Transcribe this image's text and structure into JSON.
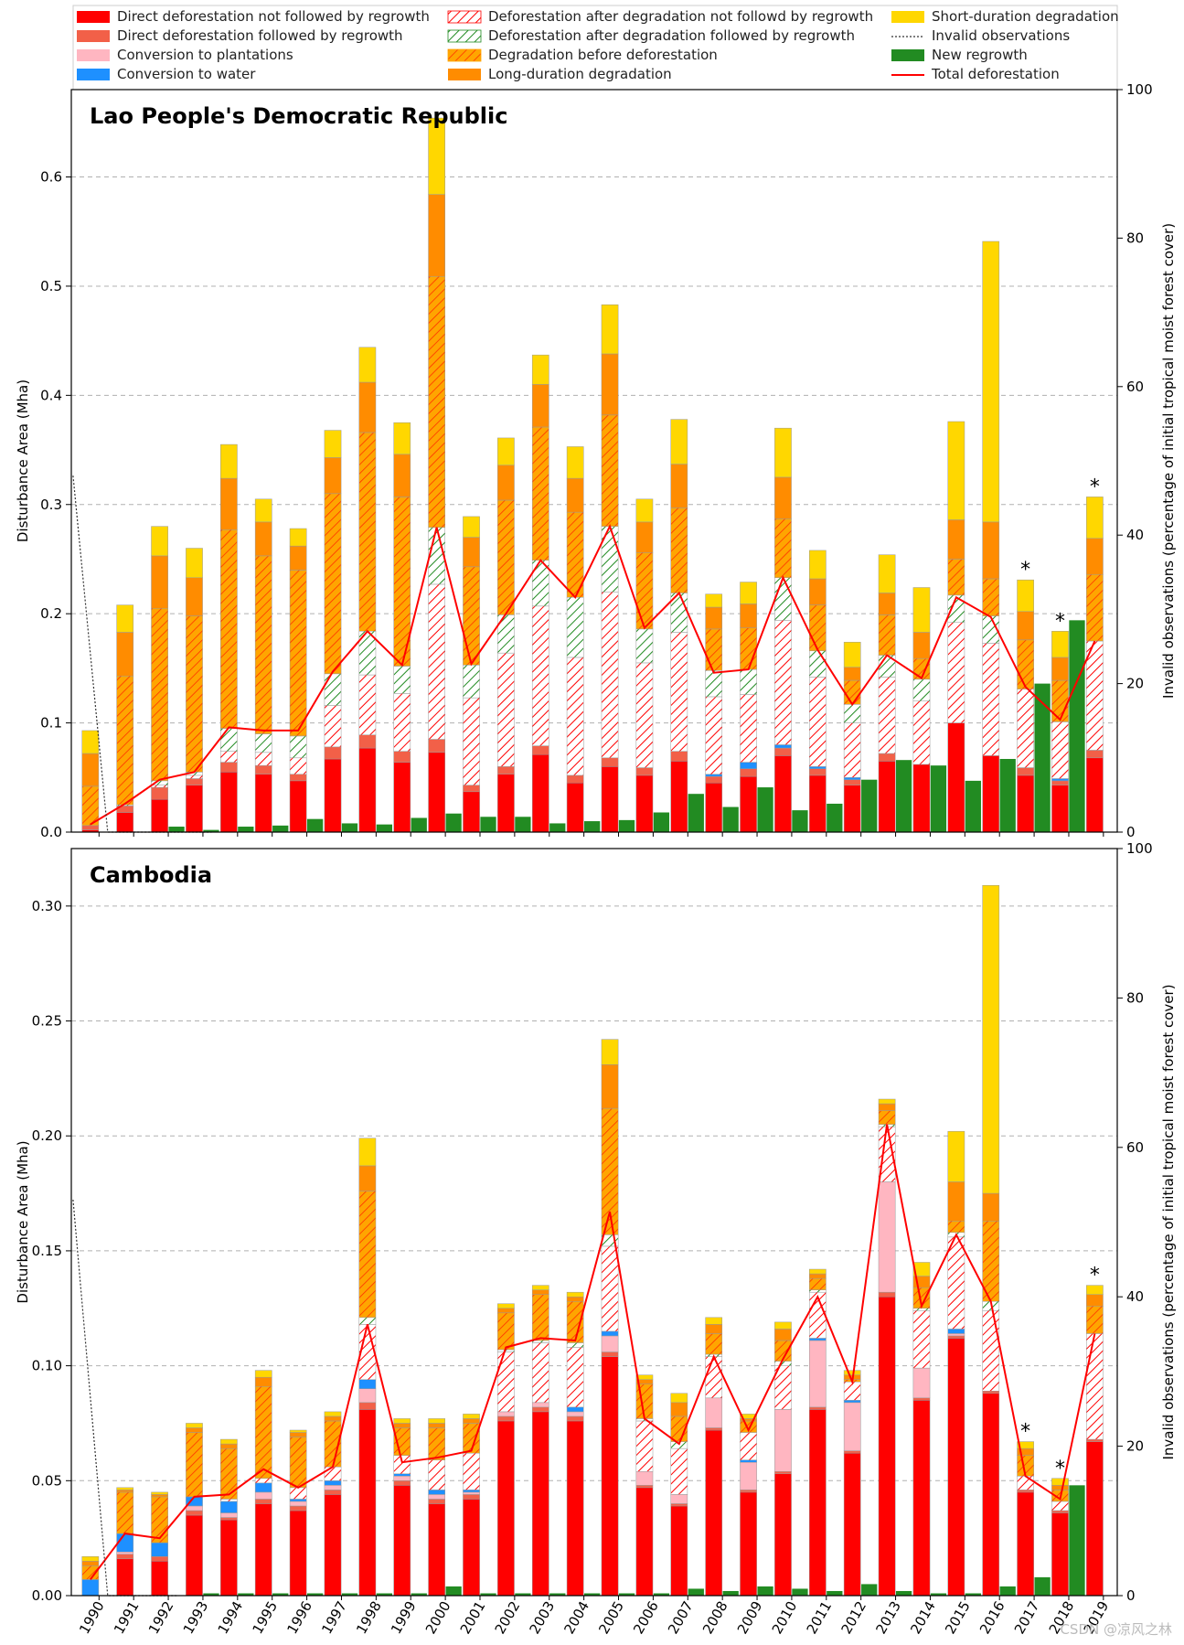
{
  "legend": [
    {
      "label": "Direct deforestation not followed by regrowth",
      "swatch": "solid",
      "color": "#ff0000"
    },
    {
      "label": "Direct deforestation followed by regrowth",
      "swatch": "solid",
      "color": "#f26048"
    },
    {
      "label": "Conversion to plantations",
      "swatch": "solid",
      "color": "#ffb6c1"
    },
    {
      "label": "Conversion to water",
      "swatch": "solid",
      "color": "#1e90ff"
    },
    {
      "label": "Deforestation after degradation not followd by regrowth",
      "swatch": "hatch-red",
      "color": "#ff0000"
    },
    {
      "label": "Deforestation after degradation followed by regrowth",
      "swatch": "hatch-green",
      "color": "#228b22"
    },
    {
      "label": "Degradation before deforestation",
      "swatch": "hatch-orange",
      "color": "#ffa500"
    },
    {
      "label": "Long-duration degradation",
      "swatch": "solid",
      "color": "#ff8c00"
    },
    {
      "label": "Short-duration degradation",
      "swatch": "solid",
      "color": "#ffd700"
    },
    {
      "label": "Invalid observations",
      "swatch": "dotted",
      "color": "#333333"
    },
    {
      "label": "New regrowth",
      "swatch": "solid",
      "color": "#228b22"
    },
    {
      "label": "Total deforestation",
      "swatch": "line",
      "color": "#ff0000"
    }
  ],
  "colors": {
    "direct_no_regrowth": "#ff0000",
    "direct_regrowth": "#f26048",
    "plantation": "#ffb6c1",
    "water": "#1e90ff",
    "after_deg_no_regrowth": "#ff0000",
    "after_deg_regrowth": "#228b22",
    "deg_before": "#ffa500",
    "long_deg": "#ff8c00",
    "short_deg": "#ffd700",
    "regrowth": "#228b22",
    "total_line": "#ff0000"
  },
  "watermark": "CSDN @凉风之林",
  "chart_data": [
    {
      "type": "bar",
      "stacked": true,
      "title": "Lao People's Democratic Republic",
      "ylabel": "Disturbance Area (Mha)",
      "y2label": "Invalid observations (percentage of initial tropical moist forest cover)",
      "ylim": [
        0,
        0.68
      ],
      "y2lim": [
        0,
        100
      ],
      "yticks": [
        "0.0",
        "0.1",
        "0.2",
        "0.3",
        "0.4",
        "0.5",
        "0.6"
      ],
      "y2ticks": [
        "0",
        "20",
        "40",
        "60",
        "80",
        "100"
      ],
      "grid": true,
      "categories": [
        "1990",
        "1991",
        "1992",
        "1993",
        "1994",
        "1995",
        "1996",
        "1997",
        "1998",
        "1999",
        "2000",
        "2001",
        "2002",
        "2003",
        "2004",
        "2005",
        "2006",
        "2007",
        "2008",
        "2009",
        "2010",
        "2011",
        "2012",
        "2013",
        "2014",
        "2015",
        "2016",
        "2017",
        "2018",
        "2019"
      ],
      "series": [
        {
          "name": "Direct deforestation not followed by regrowth",
          "values": [
            0.002,
            0.018,
            0.03,
            0.043,
            0.055,
            0.053,
            0.047,
            0.067,
            0.077,
            0.064,
            0.073,
            0.037,
            0.053,
            0.071,
            0.045,
            0.06,
            0.052,
            0.065,
            0.045,
            0.051,
            0.07,
            0.052,
            0.043,
            0.065,
            0.062,
            0.1,
            0.07,
            0.052,
            0.043,
            0.068
          ]
        },
        {
          "name": "Direct deforestation followed by regrowth",
          "values": [
            0.004,
            0.006,
            0.011,
            0.006,
            0.009,
            0.008,
            0.006,
            0.011,
            0.012,
            0.01,
            0.012,
            0.006,
            0.007,
            0.008,
            0.007,
            0.008,
            0.007,
            0.009,
            0.006,
            0.007,
            0.007,
            0.006,
            0.005,
            0.007,
            0.0,
            0.0,
            0.0,
            0.007,
            0.004,
            0.007
          ]
        },
        {
          "name": "Conversion to plantations",
          "values": [
            0,
            0,
            0,
            0,
            0,
            0,
            0,
            0,
            0,
            0,
            0,
            0,
            0,
            0,
            0,
            0,
            0,
            0,
            0,
            0,
            0,
            0,
            0,
            0,
            0,
            0,
            0,
            0,
            0,
            0
          ]
        },
        {
          "name": "Conversion to water",
          "values": [
            0,
            0,
            0,
            0,
            0,
            0,
            0,
            0,
            0,
            0,
            0,
            0,
            0,
            0,
            0,
            0,
            0,
            0,
            0.002,
            0.006,
            0.003,
            0.002,
            0.002,
            0,
            0,
            0,
            0,
            0,
            0.002,
            0
          ]
        },
        {
          "name": "Deforestation after degradation not followd by regrowth",
          "values": [
            0.0,
            0.0,
            0.002,
            0.003,
            0.01,
            0.012,
            0.015,
            0.038,
            0.055,
            0.053,
            0.142,
            0.08,
            0.104,
            0.128,
            0.108,
            0.152,
            0.096,
            0.109,
            0.071,
            0.062,
            0.114,
            0.082,
            0.05,
            0.07,
            0.058,
            0.092,
            0.103,
            0.072,
            0.052,
            0.1
          ]
        },
        {
          "name": "Deforestation after degradation followed by regrowth",
          "values": [
            0,
            0.001,
            0.004,
            0.003,
            0.021,
            0.017,
            0.02,
            0.029,
            0.04,
            0.025,
            0.052,
            0.03,
            0.035,
            0.042,
            0.055,
            0.06,
            0.031,
            0.036,
            0.024,
            0.023,
            0.039,
            0.024,
            0.017,
            0.02,
            0.02,
            0.025,
            0.025,
            0.0,
            0.0,
            0.0
          ]
        },
        {
          "name": "Degradation before deforestation",
          "values": [
            0.036,
            0.118,
            0.158,
            0.143,
            0.182,
            0.163,
            0.152,
            0.165,
            0.182,
            0.155,
            0.23,
            0.09,
            0.105,
            0.122,
            0.078,
            0.102,
            0.07,
            0.078,
            0.038,
            0.038,
            0.054,
            0.042,
            0.022,
            0.037,
            0.019,
            0.033,
            0.034,
            0.045,
            0.038,
            0.061
          ]
        },
        {
          "name": "Long-duration degradation",
          "values": [
            0.03,
            0.04,
            0.048,
            0.035,
            0.047,
            0.031,
            0.022,
            0.033,
            0.046,
            0.039,
            0.075,
            0.027,
            0.032,
            0.039,
            0.031,
            0.056,
            0.028,
            0.04,
            0.02,
            0.022,
            0.038,
            0.024,
            0.012,
            0.02,
            0.024,
            0.036,
            0.052,
            0.026,
            0.021,
            0.033
          ]
        },
        {
          "name": "Short-duration degradation",
          "values": [
            0.021,
            0.025,
            0.027,
            0.027,
            0.031,
            0.021,
            0.016,
            0.025,
            0.032,
            0.029,
            0.07,
            0.019,
            0.025,
            0.027,
            0.029,
            0.045,
            0.021,
            0.041,
            0.012,
            0.02,
            0.045,
            0.026,
            0.023,
            0.035,
            0.041,
            0.09,
            0.257,
            0.029,
            0.024,
            0.038
          ]
        }
      ],
      "new_regrowth": [
        null,
        0.0,
        0.005,
        0.002,
        0.005,
        0.006,
        0.012,
        0.008,
        0.007,
        0.013,
        0.017,
        0.014,
        0.014,
        0.008,
        0.01,
        0.011,
        0.018,
        0.035,
        0.023,
        0.041,
        0.02,
        0.026,
        0.048,
        0.066,
        0.061,
        0.047,
        0.067,
        0.136,
        0.194,
        null
      ],
      "total_deforestation": [
        0.007,
        0.026,
        0.048,
        0.055,
        0.096,
        0.093,
        0.093,
        0.147,
        0.184,
        0.153,
        0.279,
        0.154,
        0.2,
        0.249,
        0.215,
        0.28,
        0.187,
        0.219,
        0.146,
        0.149,
        0.233,
        0.167,
        0.117,
        0.162,
        0.141,
        0.215,
        0.197,
        0.133,
        0.103,
        0.175
      ],
      "invalid_observations": [
        48,
        0,
        0,
        0,
        0,
        null,
        null,
        null,
        null,
        null,
        null,
        null,
        null,
        null,
        null,
        null,
        null,
        null,
        null,
        null,
        null,
        null,
        null,
        null,
        null,
        null,
        null,
        null,
        null,
        null
      ],
      "asterisk_years": [
        "2017",
        "2018",
        "2019"
      ],
      "asterisk_label": "*"
    },
    {
      "type": "bar",
      "stacked": true,
      "title": "Cambodia",
      "ylabel": "Disturbance Area (Mha)",
      "y2label": "Invalid observations (percentage of initial tropical moist forest cover)",
      "ylim": [
        0,
        0.325
      ],
      "y2lim": [
        0,
        100
      ],
      "yticks": [
        "0.00",
        "0.05",
        "0.10",
        "0.15",
        "0.20",
        "0.25",
        "0.30"
      ],
      "y2ticks": [
        "0",
        "20",
        "40",
        "60",
        "80",
        "100"
      ],
      "grid": true,
      "categories": [
        "1990",
        "1991",
        "1992",
        "1993",
        "1994",
        "1995",
        "1996",
        "1997",
        "1998",
        "1999",
        "2000",
        "2001",
        "2002",
        "2003",
        "2004",
        "2005",
        "2006",
        "2007",
        "2008",
        "2009",
        "2010",
        "2011",
        "2012",
        "2013",
        "2014",
        "2015",
        "2016",
        "2017",
        "2018",
        "2019"
      ],
      "series": [
        {
          "name": "Direct deforestation not followed by regrowth",
          "values": [
            0.0,
            0.016,
            0.015,
            0.035,
            0.033,
            0.04,
            0.037,
            0.044,
            0.081,
            0.048,
            0.04,
            0.042,
            0.076,
            0.08,
            0.076,
            0.104,
            0.047,
            0.039,
            0.072,
            0.045,
            0.053,
            0.081,
            0.062,
            0.13,
            0.085,
            0.112,
            0.088,
            0.045,
            0.036,
            0.067
          ]
        },
        {
          "name": "Direct deforestation followed by regrowth",
          "values": [
            0.0,
            0.002,
            0.002,
            0.002,
            0.001,
            0.002,
            0.002,
            0.002,
            0.003,
            0.002,
            0.002,
            0.002,
            0.002,
            0.002,
            0.002,
            0.002,
            0.001,
            0.001,
            0.001,
            0.001,
            0.001,
            0.001,
            0.001,
            0.002,
            0.001,
            0.001,
            0.001,
            0.001,
            0.001,
            0.001
          ]
        },
        {
          "name": "Conversion to plantations",
          "values": [
            0.0,
            0.001,
            0.0,
            0.002,
            0.002,
            0.003,
            0.002,
            0.002,
            0.006,
            0.002,
            0.002,
            0.001,
            0.002,
            0.002,
            0.002,
            0.007,
            0.006,
            0.004,
            0.013,
            0.012,
            0.027,
            0.029,
            0.021,
            0.048,
            0.013,
            0.001,
            0.0,
            0.0,
            0.0,
            0.0
          ]
        },
        {
          "name": "Conversion to water",
          "values": [
            0.007,
            0.008,
            0.006,
            0.004,
            0.005,
            0.004,
            0.001,
            0.002,
            0.004,
            0.001,
            0.002,
            0.001,
            0.0,
            0.0,
            0.002,
            0.002,
            0.0,
            0.0,
            0.0,
            0.001,
            0.0,
            0.001,
            0.001,
            0.0,
            0.0,
            0.002,
            0.0,
            0.0,
            0.0,
            0.0
          ]
        },
        {
          "name": "Deforestation after degradation not followd by regrowth",
          "values": [
            0.0,
            0.0,
            0.0,
            0.0,
            0.001,
            0.002,
            0.005,
            0.006,
            0.024,
            0.008,
            0.013,
            0.016,
            0.026,
            0.026,
            0.026,
            0.037,
            0.022,
            0.02,
            0.018,
            0.012,
            0.019,
            0.02,
            0.008,
            0.024,
            0.025,
            0.04,
            0.035,
            0.006,
            0.004,
            0.046
          ]
        },
        {
          "name": "Deforestation after degradation followed by regrowth",
          "values": [
            0,
            0,
            0,
            0,
            0,
            0,
            0,
            0,
            0.003,
            0.0,
            0.0,
            0.0,
            0.001,
            0.001,
            0.002,
            0.005,
            0.001,
            0.003,
            0.001,
            0.0,
            0.002,
            0.001,
            0.0,
            0.001,
            0.001,
            0.002,
            0.004,
            0,
            0,
            0
          ]
        },
        {
          "name": "Degradation before deforestation",
          "values": [
            0.006,
            0.018,
            0.02,
            0.028,
            0.022,
            0.04,
            0.022,
            0.02,
            0.055,
            0.012,
            0.014,
            0.013,
            0.016,
            0.02,
            0.018,
            0.055,
            0.015,
            0.011,
            0.009,
            0.005,
            0.009,
            0.005,
            0.001,
            0.006,
            0.009,
            0.005,
            0.035,
            0.009,
            0.005,
            0.012
          ]
        },
        {
          "name": "Long-duration degradation",
          "values": [
            0.002,
            0.001,
            0.001,
            0.002,
            0.002,
            0.004,
            0.002,
            0.002,
            0.011,
            0.002,
            0.002,
            0.002,
            0.002,
            0.002,
            0.002,
            0.019,
            0.002,
            0.006,
            0.004,
            0.001,
            0.005,
            0.002,
            0.002,
            0.003,
            0.005,
            0.017,
            0.012,
            0.003,
            0.002,
            0.005
          ]
        },
        {
          "name": "Short-duration degradation",
          "values": [
            0.002,
            0.001,
            0.001,
            0.002,
            0.002,
            0.003,
            0.001,
            0.002,
            0.012,
            0.002,
            0.002,
            0.002,
            0.002,
            0.002,
            0.002,
            0.011,
            0.002,
            0.004,
            0.003,
            0.002,
            0.003,
            0.002,
            0.002,
            0.002,
            0.006,
            0.022,
            0.134,
            0.003,
            0.003,
            0.004
          ]
        }
      ],
      "new_regrowth": [
        null,
        0.0,
        0.0,
        0.001,
        0.001,
        0.001,
        0.001,
        0.001,
        0.001,
        0.001,
        0.004,
        0.001,
        0.001,
        0.001,
        0.001,
        0.001,
        0.001,
        0.003,
        0.002,
        0.004,
        0.003,
        0.002,
        0.005,
        0.002,
        0.001,
        0.001,
        0.004,
        0.008,
        0.048,
        null
      ],
      "total_deforestation": [
        0.007,
        0.027,
        0.025,
        0.043,
        0.044,
        0.055,
        0.047,
        0.056,
        0.118,
        0.058,
        0.06,
        0.063,
        0.108,
        0.112,
        0.111,
        0.167,
        0.077,
        0.066,
        0.104,
        0.072,
        0.103,
        0.13,
        0.093,
        0.205,
        0.126,
        0.157,
        0.128,
        0.052,
        0.042,
        0.114
      ],
      "invalid_observations": [
        53,
        0,
        0,
        0,
        null,
        null,
        null,
        null,
        null,
        null,
        null,
        null,
        null,
        null,
        null,
        null,
        null,
        null,
        null,
        null,
        null,
        null,
        null,
        null,
        null,
        null,
        null,
        null,
        null,
        null
      ],
      "asterisk_years": [
        "2017",
        "2018",
        "2019"
      ],
      "asterisk_label": "*"
    }
  ]
}
